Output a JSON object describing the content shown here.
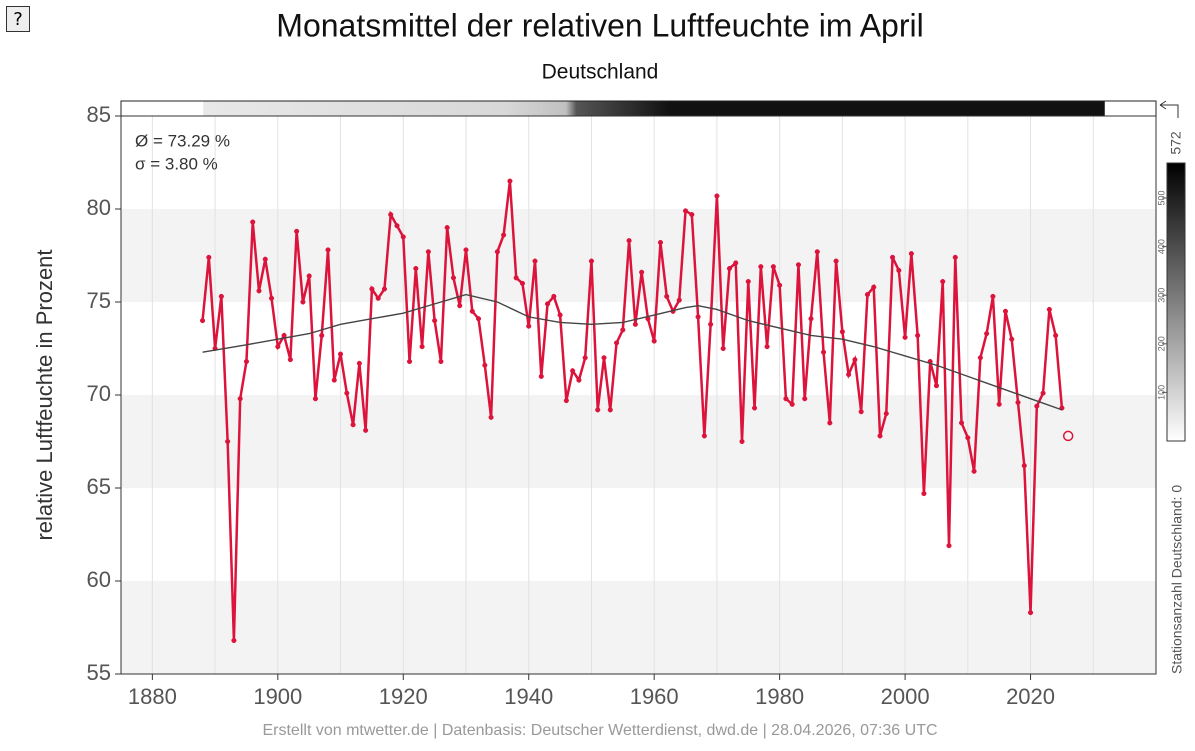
{
  "chart_data": {
    "type": "line",
    "title": "Monatsmittel der relativen Luftfeuchte im April",
    "subtitle": "Deutschland",
    "y_label": "relative Luftfeuchte in Prozent",
    "annotations": [
      "Ø = 73.29 %",
      "σ = 3.80 %"
    ],
    "footer": "Erstellt von mtwetter.de | Datenbasis: Deutscher Wetterdienst, dwd.de | 28.04.2026, 07:36 UTC",
    "help_button": "?",
    "xlim": [
      1875,
      2040
    ],
    "xticks": [
      1880,
      1900,
      1920,
      1940,
      1960,
      1980,
      2000,
      2020
    ],
    "xgrid": [
      1880,
      1890,
      1900,
      1910,
      1920,
      1930,
      1940,
      1950,
      1960,
      1970,
      1980,
      1990,
      2000,
      2010,
      2020,
      2030
    ],
    "ylim": [
      55,
      85
    ],
    "yticks": [
      55,
      60,
      65,
      70,
      75,
      80,
      85
    ],
    "y_bands": [
      [
        55,
        60
      ],
      [
        65,
        70
      ],
      [
        75,
        80
      ]
    ],
    "x": [
      1888,
      1889,
      1890,
      1891,
      1892,
      1893,
      1894,
      1895,
      1896,
      1897,
      1898,
      1899,
      1900,
      1901,
      1902,
      1903,
      1904,
      1905,
      1906,
      1907,
      1908,
      1909,
      1910,
      1911,
      1912,
      1913,
      1914,
      1915,
      1916,
      1917,
      1918,
      1919,
      1920,
      1921,
      1922,
      1923,
      1924,
      1925,
      1926,
      1927,
      1928,
      1929,
      1930,
      1931,
      1932,
      1933,
      1934,
      1935,
      1936,
      1937,
      1938,
      1939,
      1940,
      1941,
      1942,
      1943,
      1944,
      1945,
      1946,
      1947,
      1948,
      1949,
      1950,
      1951,
      1952,
      1953,
      1954,
      1955,
      1956,
      1957,
      1958,
      1959,
      1960,
      1961,
      1962,
      1963,
      1964,
      1965,
      1966,
      1967,
      1968,
      1969,
      1970,
      1971,
      1972,
      1973,
      1974,
      1975,
      1976,
      1977,
      1978,
      1979,
      1980,
      1981,
      1982,
      1983,
      1984,
      1985,
      1986,
      1987,
      1988,
      1989,
      1990,
      1991,
      1992,
      1993,
      1994,
      1995,
      1996,
      1997,
      1998,
      1999,
      2000,
      2001,
      2002,
      2003,
      2004,
      2005,
      2006,
      2007,
      2008,
      2009,
      2010,
      2011,
      2012,
      2013,
      2014,
      2015,
      2016,
      2017,
      2018,
      2019,
      2020,
      2021,
      2022,
      2023,
      2024,
      2025
    ],
    "series": [
      {
        "color": "#dc143c",
        "values": [
          74.0,
          77.4,
          72.5,
          75.3,
          67.5,
          56.8,
          69.8,
          71.8,
          79.3,
          75.6,
          77.3,
          75.2,
          72.6,
          73.2,
          71.9,
          78.8,
          75.0,
          76.4,
          69.8,
          73.2,
          77.8,
          70.8,
          72.2,
          70.1,
          68.4,
          71.7,
          68.1,
          75.7,
          75.2,
          75.7,
          79.7,
          79.1,
          78.5,
          71.8,
          76.8,
          72.6,
          77.7,
          74.0,
          71.8,
          79.0,
          76.3,
          74.8,
          77.8,
          74.5,
          74.1,
          71.6,
          68.8,
          77.7,
          78.6,
          81.5,
          76.3,
          76.0,
          73.7,
          77.2,
          71.0,
          74.9,
          75.3,
          74.3,
          69.7,
          71.3,
          70.8,
          72.0,
          77.2,
          69.2,
          72.0,
          69.2,
          72.8,
          73.5,
          78.3,
          73.8,
          76.6,
          74.1,
          72.9,
          78.2,
          75.3,
          74.5,
          75.1,
          79.9,
          79.7,
          74.2,
          67.8,
          73.8,
          80.7,
          72.5,
          76.8,
          77.1,
          67.5,
          76.1,
          69.3,
          76.9,
          72.6,
          76.9,
          75.9,
          69.8,
          69.5,
          77.0,
          69.8,
          74.1,
          77.7,
          72.3,
          68.5,
          77.2,
          73.4,
          71.1,
          71.9,
          69.1,
          75.4,
          75.8,
          67.8,
          69.0,
          77.4,
          76.7,
          73.1,
          77.6,
          73.2,
          64.7,
          71.8,
          70.5,
          76.1,
          61.9,
          77.4,
          68.5,
          67.7,
          65.9,
          72.0,
          73.3,
          75.3,
          69.5,
          74.5,
          73.0,
          69.6,
          66.2,
          58.3,
          69.4,
          70.1,
          74.6,
          73.2,
          69.3
        ],
        "marker": "dot"
      },
      {
        "color": "#444444",
        "x": [
          1888,
          1895,
          1900,
          1905,
          1910,
          1915,
          1920,
          1925,
          1930,
          1935,
          1940,
          1945,
          1950,
          1955,
          1960,
          1965,
          1967,
          1970,
          1975,
          1980,
          1985,
          1990,
          1995,
          2000,
          2005,
          2010,
          2015,
          2020,
          2025
        ],
        "values": [
          72.3,
          72.7,
          73.0,
          73.3,
          73.8,
          74.1,
          74.4,
          74.9,
          75.4,
          75.0,
          74.2,
          73.9,
          73.8,
          73.9,
          74.3,
          74.7,
          74.8,
          74.6,
          74.0,
          73.6,
          73.2,
          73.0,
          72.6,
          72.1,
          71.6,
          71.0,
          70.4,
          69.8,
          69.2
        ],
        "marker": "none"
      },
      {
        "color": "#dc143c",
        "x": [
          2026
        ],
        "values": [
          67.8
        ],
        "marker": "open"
      }
    ],
    "colorbar": {
      "label": "Stationsanzahl Deutschland: 0",
      "lim": [
        0,
        572
      ],
      "ticks": [
        100,
        200,
        300,
        400,
        500
      ]
    }
  }
}
